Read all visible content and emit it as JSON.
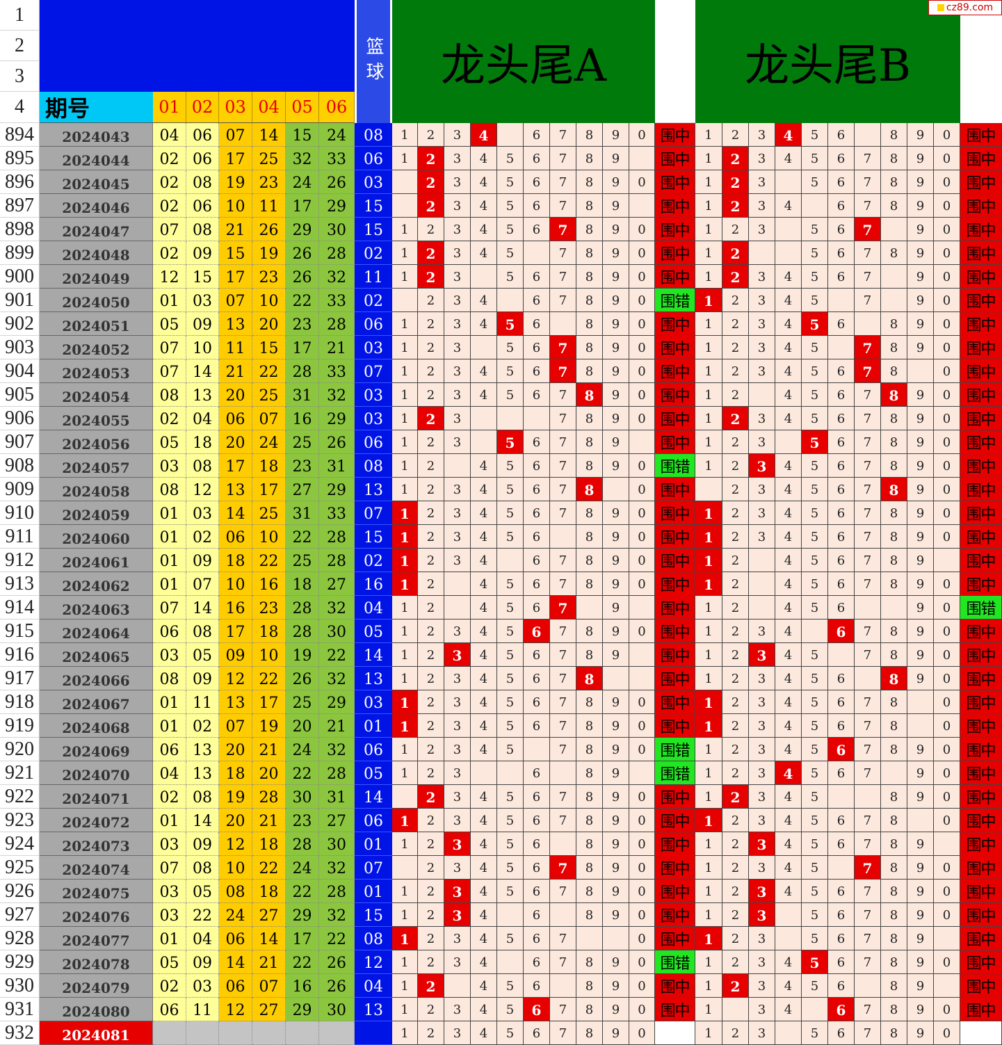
{
  "header": {
    "title_a": "龙头尾A",
    "title_b": "龙头尾B",
    "basket_col": "篮球",
    "period_label": "期号",
    "col_labels": [
      "01",
      "02",
      "03",
      "04",
      "05",
      "06"
    ],
    "top_row_numbers": [
      "1",
      "2",
      "3",
      "4"
    ]
  },
  "watermark": {
    "text": "cz89.com"
  },
  "digit_labels": [
    "1",
    "2",
    "3",
    "4",
    "5",
    "6",
    "7",
    "8",
    "9",
    "0"
  ],
  "rows": [
    {
      "rn": "894",
      "period": "2024043",
      "nums": [
        "04",
        "06",
        "07",
        "14",
        "15",
        "24"
      ],
      "blue": "08",
      "a_blank": [
        4
      ],
      "a_hit": 3,
      "a_res": "围中",
      "b_blank": [
        6
      ],
      "b_hit": 3,
      "b_res": "围中"
    },
    {
      "rn": "895",
      "period": "2024044",
      "nums": [
        "02",
        "06",
        "17",
        "25",
        "32",
        "33"
      ],
      "blue": "06",
      "a_blank": [
        9
      ],
      "a_hit": 1,
      "a_res": "围中",
      "b_blank": [],
      "b_hit": 1,
      "b_res": "围中"
    },
    {
      "rn": "896",
      "period": "2024045",
      "nums": [
        "02",
        "08",
        "19",
        "23",
        "24",
        "26"
      ],
      "blue": "03",
      "a_blank": [
        0
      ],
      "a_hit": 1,
      "a_res": "围中",
      "b_blank": [
        3
      ],
      "b_hit": 1,
      "b_res": "围中"
    },
    {
      "rn": "897",
      "period": "2024046",
      "nums": [
        "02",
        "06",
        "10",
        "11",
        "17",
        "29"
      ],
      "blue": "15",
      "a_blank": [
        0,
        9
      ],
      "a_hit": 1,
      "a_res": "围中",
      "b_blank": [
        4
      ],
      "b_hit": 1,
      "b_res": "围中"
    },
    {
      "rn": "898",
      "period": "2024047",
      "nums": [
        "07",
        "08",
        "21",
        "26",
        "29",
        "30"
      ],
      "blue": "15",
      "a_blank": [],
      "a_hit": 6,
      "a_res": "围中",
      "b_blank": [
        3,
        7
      ],
      "b_hit": 6,
      "b_res": "围中"
    },
    {
      "rn": "899",
      "period": "2024048",
      "nums": [
        "02",
        "09",
        "15",
        "19",
        "26",
        "28"
      ],
      "blue": "02",
      "a_blank": [
        5
      ],
      "a_hit": 1,
      "a_res": "围中",
      "b_blank": [
        2,
        3
      ],
      "b_hit": 1,
      "b_res": "围中"
    },
    {
      "rn": "900",
      "period": "2024049",
      "nums": [
        "12",
        "15",
        "17",
        "23",
        "26",
        "32"
      ],
      "blue": "11",
      "a_blank": [
        3
      ],
      "a_hit": 1,
      "a_res": "围中",
      "b_blank": [
        7
      ],
      "b_hit": 1,
      "b_res": "围中"
    },
    {
      "rn": "901",
      "period": "2024050",
      "nums": [
        "01",
        "03",
        "07",
        "10",
        "22",
        "33"
      ],
      "blue": "02",
      "a_blank": [
        0,
        4
      ],
      "a_hit": -1,
      "a_res": "围错",
      "b_blank": [
        5,
        7
      ],
      "b_hit": 0,
      "b_res": "围中"
    },
    {
      "rn": "902",
      "period": "2024051",
      "nums": [
        "05",
        "09",
        "13",
        "20",
        "23",
        "28"
      ],
      "blue": "06",
      "a_blank": [
        6
      ],
      "a_hit": 4,
      "a_res": "围中",
      "b_blank": [
        6
      ],
      "b_hit": 4,
      "b_res": "围中"
    },
    {
      "rn": "903",
      "period": "2024052",
      "nums": [
        "07",
        "10",
        "11",
        "15",
        "17",
        "21"
      ],
      "blue": "03",
      "a_blank": [
        3
      ],
      "a_hit": 6,
      "a_res": "围中",
      "b_blank": [
        5
      ],
      "b_hit": 6,
      "b_res": "围中"
    },
    {
      "rn": "904",
      "period": "2024053",
      "nums": [
        "07",
        "14",
        "21",
        "22",
        "28",
        "33"
      ],
      "blue": "07",
      "a_blank": [],
      "a_hit": 6,
      "a_res": "围中",
      "b_blank": [
        8
      ],
      "b_hit": 6,
      "b_res": "围中"
    },
    {
      "rn": "905",
      "period": "2024054",
      "nums": [
        "08",
        "13",
        "20",
        "25",
        "31",
        "32"
      ],
      "blue": "03",
      "a_blank": [],
      "a_hit": 7,
      "a_res": "围中",
      "b_blank": [
        2
      ],
      "b_hit": 7,
      "b_res": "围中"
    },
    {
      "rn": "906",
      "period": "2024055",
      "nums": [
        "02",
        "04",
        "06",
        "07",
        "16",
        "29"
      ],
      "blue": "03",
      "a_blank": [
        3,
        4,
        5
      ],
      "a_hit": 1,
      "a_res": "围中",
      "b_blank": [],
      "b_hit": 1,
      "b_res": "围中"
    },
    {
      "rn": "907",
      "period": "2024056",
      "nums": [
        "05",
        "18",
        "20",
        "24",
        "25",
        "26"
      ],
      "blue": "06",
      "a_blank": [
        3,
        9
      ],
      "a_hit": 4,
      "a_res": "围中",
      "b_blank": [
        3
      ],
      "b_hit": 4,
      "b_res": "围中"
    },
    {
      "rn": "908",
      "period": "2024057",
      "nums": [
        "03",
        "08",
        "17",
        "18",
        "23",
        "31"
      ],
      "blue": "08",
      "a_blank": [
        2
      ],
      "a_hit": -1,
      "a_res": "围错",
      "b_blank": [],
      "b_hit": 2,
      "b_res": "围中"
    },
    {
      "rn": "909",
      "period": "2024058",
      "nums": [
        "08",
        "12",
        "13",
        "17",
        "27",
        "29"
      ],
      "blue": "13",
      "a_blank": [
        8
      ],
      "a_hit": 7,
      "a_res": "围中",
      "b_blank": [
        0
      ],
      "b_hit": 7,
      "b_res": "围中"
    },
    {
      "rn": "910",
      "period": "2024059",
      "nums": [
        "01",
        "03",
        "14",
        "25",
        "31",
        "33"
      ],
      "blue": "07",
      "a_blank": [],
      "a_hit": 0,
      "a_res": "围中",
      "b_blank": [],
      "b_hit": 0,
      "b_res": "围中"
    },
    {
      "rn": "911",
      "period": "2024060",
      "nums": [
        "01",
        "02",
        "06",
        "10",
        "22",
        "28"
      ],
      "blue": "15",
      "a_blank": [
        6
      ],
      "a_hit": 0,
      "a_res": "围中",
      "b_blank": [],
      "b_hit": 0,
      "b_res": "围中"
    },
    {
      "rn": "912",
      "period": "2024061",
      "nums": [
        "01",
        "09",
        "18",
        "22",
        "25",
        "28"
      ],
      "blue": "02",
      "a_blank": [
        4
      ],
      "a_hit": 0,
      "a_res": "围中",
      "b_blank": [
        2,
        9
      ],
      "b_hit": 0,
      "b_res": "围中"
    },
    {
      "rn": "913",
      "period": "2024062",
      "nums": [
        "01",
        "07",
        "10",
        "16",
        "18",
        "27"
      ],
      "blue": "16",
      "a_blank": [
        2
      ],
      "a_hit": 0,
      "a_res": "围中",
      "b_blank": [
        2
      ],
      "b_hit": 0,
      "b_res": "围中"
    },
    {
      "rn": "914",
      "period": "2024063",
      "nums": [
        "07",
        "14",
        "16",
        "23",
        "28",
        "32"
      ],
      "blue": "04",
      "a_blank": [
        2,
        7,
        9
      ],
      "a_hit": 6,
      "a_res": "围中",
      "b_blank": [
        2,
        6,
        7
      ],
      "b_hit": -1,
      "b_res": "围错"
    },
    {
      "rn": "915",
      "period": "2024064",
      "nums": [
        "06",
        "08",
        "17",
        "18",
        "28",
        "30"
      ],
      "blue": "05",
      "a_blank": [],
      "a_hit": 5,
      "a_res": "围中",
      "b_blank": [
        4
      ],
      "b_hit": 5,
      "b_res": "围中"
    },
    {
      "rn": "916",
      "period": "2024065",
      "nums": [
        "03",
        "05",
        "09",
        "10",
        "19",
        "22"
      ],
      "blue": "14",
      "a_blank": [
        9
      ],
      "a_hit": 2,
      "a_res": "围中",
      "b_blank": [
        5
      ],
      "b_hit": 2,
      "b_res": "围中"
    },
    {
      "rn": "917",
      "period": "2024066",
      "nums": [
        "08",
        "09",
        "12",
        "22",
        "26",
        "32"
      ],
      "blue": "13",
      "a_blank": [
        8,
        9
      ],
      "a_hit": 7,
      "a_res": "围中",
      "b_blank": [
        6
      ],
      "b_hit": 7,
      "b_res": "围中"
    },
    {
      "rn": "918",
      "period": "2024067",
      "nums": [
        "01",
        "11",
        "13",
        "17",
        "25",
        "29"
      ],
      "blue": "03",
      "a_blank": [],
      "a_hit": 0,
      "a_res": "围中",
      "b_blank": [
        8
      ],
      "b_hit": 0,
      "b_res": "围中"
    },
    {
      "rn": "919",
      "period": "2024068",
      "nums": [
        "01",
        "02",
        "07",
        "19",
        "20",
        "21"
      ],
      "blue": "01",
      "a_blank": [],
      "a_hit": 0,
      "a_res": "围中",
      "b_blank": [
        8
      ],
      "b_hit": 0,
      "b_res": "围中"
    },
    {
      "rn": "920",
      "period": "2024069",
      "nums": [
        "06",
        "13",
        "20",
        "21",
        "24",
        "32"
      ],
      "blue": "06",
      "a_blank": [
        5
      ],
      "a_hit": -1,
      "a_res": "围错",
      "b_blank": [],
      "b_hit": 5,
      "b_res": "围中"
    },
    {
      "rn": "921",
      "period": "2024070",
      "nums": [
        "04",
        "13",
        "18",
        "20",
        "22",
        "28"
      ],
      "blue": "05",
      "a_blank": [
        3,
        4,
        6,
        9
      ],
      "a_hit": -1,
      "a_res": "围错",
      "b_blank": [
        7
      ],
      "b_hit": 3,
      "b_res": "围中"
    },
    {
      "rn": "922",
      "period": "2024071",
      "nums": [
        "02",
        "08",
        "19",
        "28",
        "30",
        "31"
      ],
      "blue": "14",
      "a_blank": [
        0
      ],
      "a_hit": 1,
      "a_res": "围中",
      "b_blank": [
        5,
        6
      ],
      "b_hit": 1,
      "b_res": "围中"
    },
    {
      "rn": "923",
      "period": "2024072",
      "nums": [
        "01",
        "14",
        "20",
        "21",
        "23",
        "27"
      ],
      "blue": "06",
      "a_blank": [],
      "a_hit": 0,
      "a_res": "围中",
      "b_blank": [
        8
      ],
      "b_hit": 0,
      "b_res": "围中"
    },
    {
      "rn": "924",
      "period": "2024073",
      "nums": [
        "03",
        "09",
        "12",
        "18",
        "28",
        "30"
      ],
      "blue": "01",
      "a_blank": [
        6
      ],
      "a_hit": 2,
      "a_res": "围中",
      "b_blank": [
        9
      ],
      "b_hit": 2,
      "b_res": "围中"
    },
    {
      "rn": "925",
      "period": "2024074",
      "nums": [
        "07",
        "08",
        "10",
        "22",
        "24",
        "32"
      ],
      "blue": "07",
      "a_blank": [
        0
      ],
      "a_hit": 6,
      "a_res": "围中",
      "b_blank": [
        5
      ],
      "b_hit": 6,
      "b_res": "围中"
    },
    {
      "rn": "926",
      "period": "2024075",
      "nums": [
        "03",
        "05",
        "08",
        "18",
        "22",
        "28"
      ],
      "blue": "01",
      "a_blank": [],
      "a_hit": 2,
      "a_res": "围中",
      "b_blank": [],
      "b_hit": 2,
      "b_res": "围中"
    },
    {
      "rn": "927",
      "period": "2024076",
      "nums": [
        "03",
        "22",
        "24",
        "27",
        "29",
        "32"
      ],
      "blue": "15",
      "a_blank": [
        4,
        6
      ],
      "a_hit": 2,
      "a_res": "围中",
      "b_blank": [
        3
      ],
      "b_hit": 2,
      "b_res": "围中"
    },
    {
      "rn": "928",
      "period": "2024077",
      "nums": [
        "01",
        "04",
        "06",
        "14",
        "17",
        "22"
      ],
      "blue": "08",
      "a_blank": [
        7,
        8
      ],
      "a_hit": 0,
      "a_res": "围中",
      "b_blank": [
        3,
        9
      ],
      "b_hit": 0,
      "b_res": "围中"
    },
    {
      "rn": "929",
      "period": "2024078",
      "nums": [
        "05",
        "09",
        "14",
        "21",
        "22",
        "26"
      ],
      "blue": "12",
      "a_blank": [
        4
      ],
      "a_hit": -1,
      "a_res": "围错",
      "b_blank": [],
      "b_hit": 4,
      "b_res": "围中"
    },
    {
      "rn": "930",
      "period": "2024079",
      "nums": [
        "02",
        "03",
        "06",
        "07",
        "16",
        "26"
      ],
      "blue": "04",
      "a_blank": [
        2,
        6
      ],
      "a_hit": 1,
      "a_res": "围中",
      "b_blank": [
        6,
        9
      ],
      "b_hit": 1,
      "b_res": "围中"
    },
    {
      "rn": "931",
      "period": "2024080",
      "nums": [
        "06",
        "11",
        "12",
        "27",
        "29",
        "30"
      ],
      "blue": "13",
      "a_blank": [],
      "a_hit": 5,
      "a_res": "围中",
      "b_blank": [
        1,
        4
      ],
      "b_hit": 5,
      "b_res": "围中"
    },
    {
      "rn": "932",
      "period": "2024081",
      "nums": [
        "",
        "",
        "",
        "",
        "",
        ""
      ],
      "blue": "",
      "a_blank": [],
      "a_hit": -1,
      "a_res": "",
      "b_blank": [
        3
      ],
      "b_hit": -1,
      "b_res": ""
    }
  ],
  "colors": {
    "blue": "#0014e6",
    "green": "#007a0a",
    "hit": "#e60000",
    "miss": "#22e622"
  }
}
